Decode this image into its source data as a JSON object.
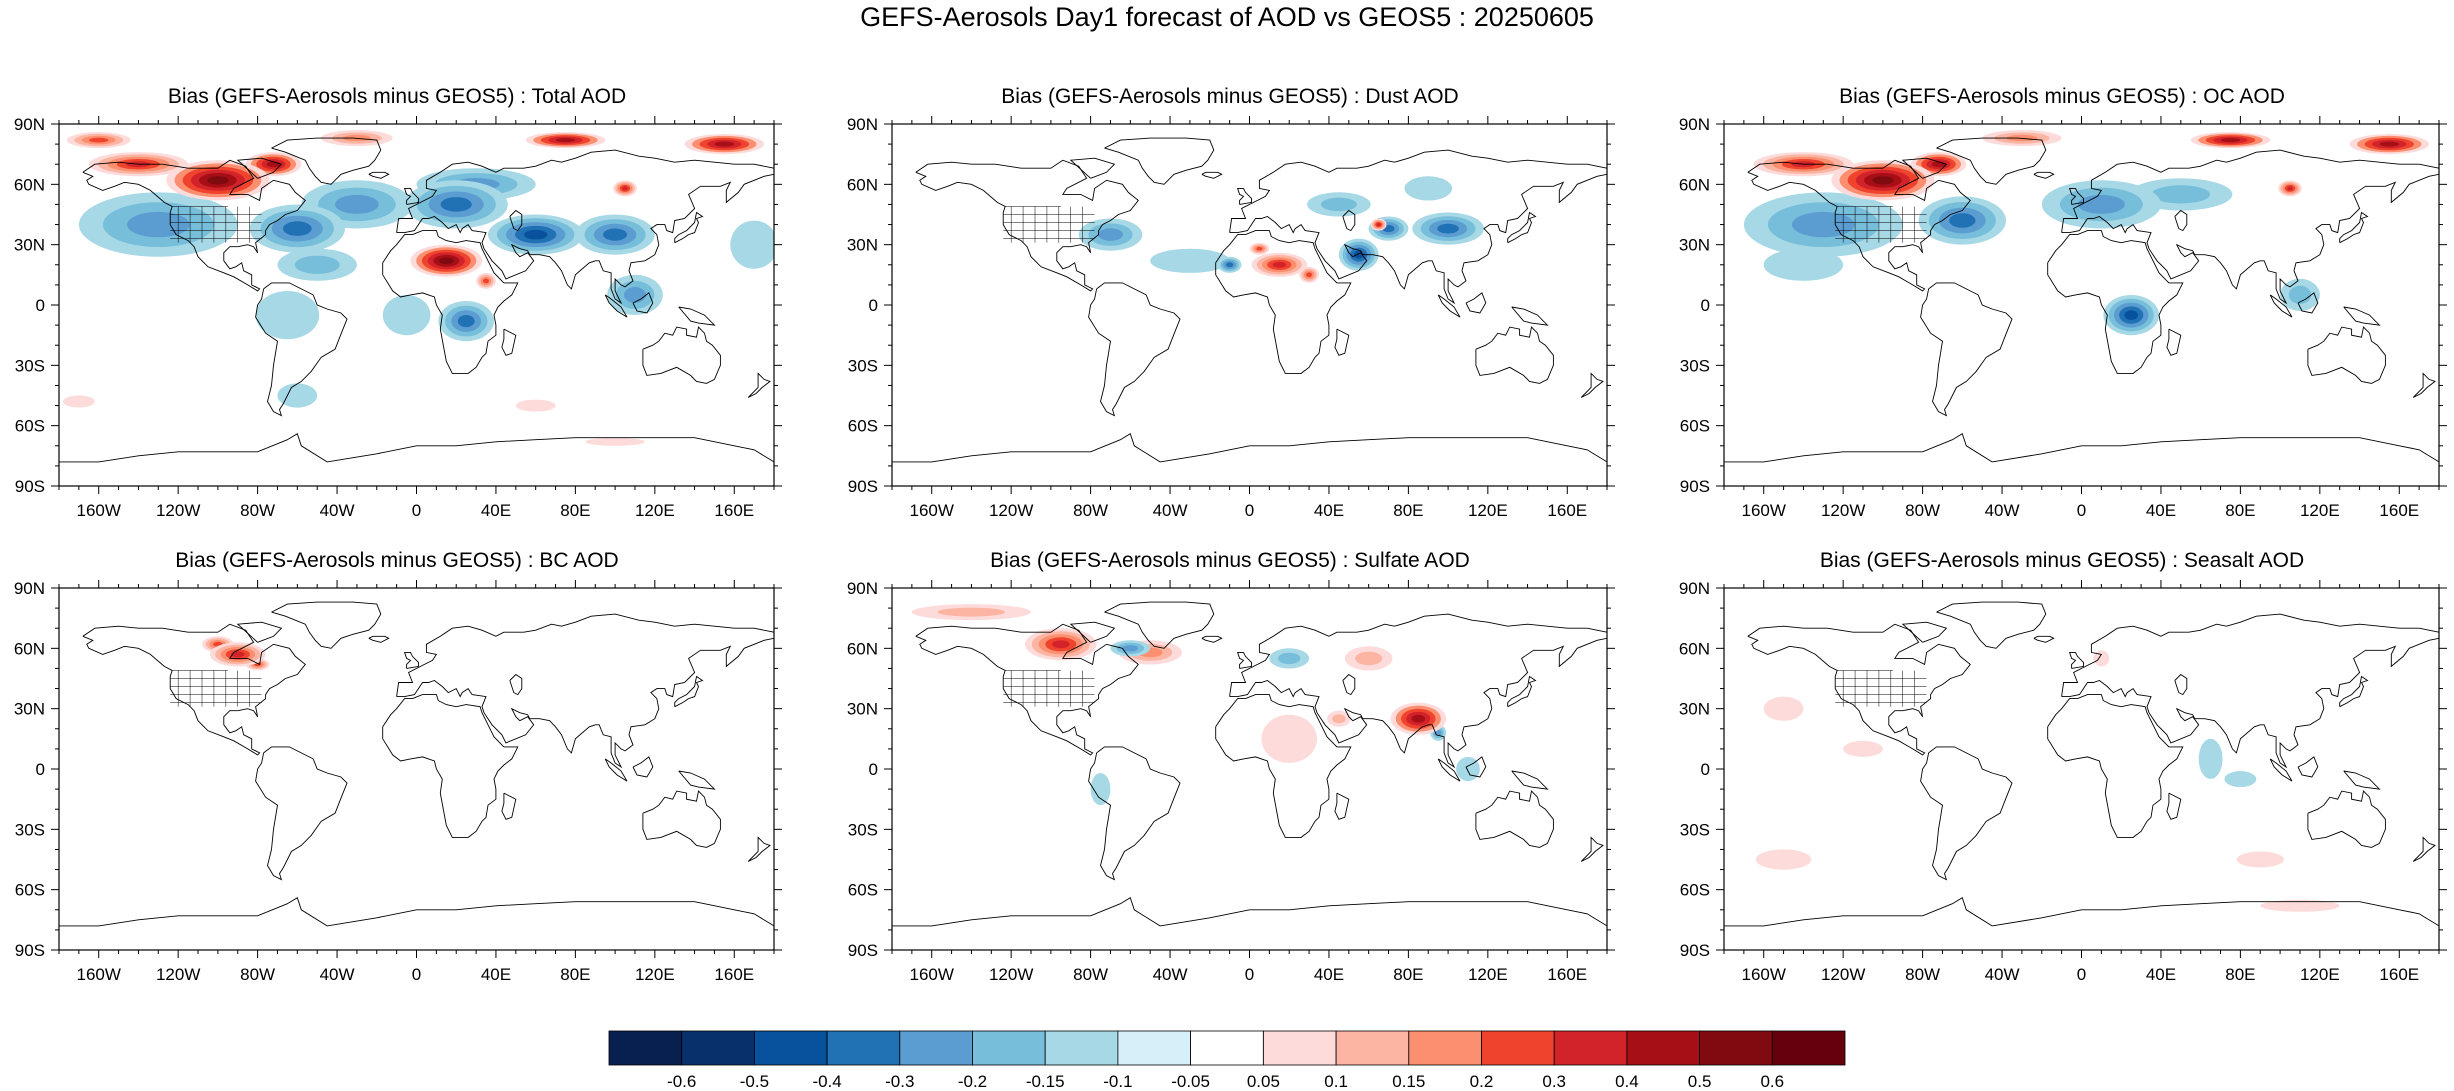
{
  "title": "GEFS-Aerosols Day1 forecast of AOD vs GEOS5 : 20250605",
  "map": {
    "lat_labels": [
      "90N",
      "60N",
      "30N",
      "0",
      "30S",
      "60S",
      "90S"
    ],
    "lat_values": [
      90,
      60,
      30,
      0,
      -30,
      -60,
      -90
    ],
    "lon_labels": [
      "160W",
      "120W",
      "80W",
      "40W",
      "0",
      "40E",
      "80E",
      "120E",
      "160E"
    ],
    "lon_values": [
      -160,
      -120,
      -80,
      -40,
      0,
      40,
      80,
      120,
      160
    ],
    "lon_range": [
      -180,
      180
    ],
    "lat_range": [
      -90,
      90
    ]
  },
  "panels": [
    {
      "title": "Bias (GEFS-Aerosols minus GEOS5) : Total AOD",
      "blobs": [
        {
          "lon": -100,
          "lat": 62,
          "rlon": 26,
          "rlat": 10,
          "v": 0.6
        },
        {
          "lon": -140,
          "lat": 70,
          "rlon": 25,
          "rlat": 6,
          "v": 0.4
        },
        {
          "lon": -72,
          "lat": 70,
          "rlon": 14,
          "rlat": 6,
          "v": 0.5
        },
        {
          "lon": -160,
          "lat": 82,
          "rlon": 16,
          "rlat": 4,
          "v": 0.3
        },
        {
          "lon": -30,
          "lat": 83,
          "rlon": 18,
          "rlat": 4,
          "v": 0.2
        },
        {
          "lon": 75,
          "lat": 82,
          "rlon": 20,
          "rlat": 4,
          "v": 0.5
        },
        {
          "lon": 155,
          "lat": 80,
          "rlon": 20,
          "rlat": 5,
          "v": 0.5
        },
        {
          "lon": 105,
          "lat": 58,
          "rlon": 6,
          "rlat": 4,
          "v": 0.4
        },
        {
          "lon": 15,
          "lat": 22,
          "rlon": 18,
          "rlat": 8,
          "v": 0.6
        },
        {
          "lon": 35,
          "lat": 12,
          "rlon": 5,
          "rlat": 4,
          "v": 0.3
        },
        {
          "lon": -130,
          "lat": 40,
          "rlon": 40,
          "rlat": 16,
          "v": -0.2
        },
        {
          "lon": -60,
          "lat": 38,
          "rlon": 24,
          "rlat": 12,
          "v": -0.3
        },
        {
          "lon": -30,
          "lat": 50,
          "rlon": 28,
          "rlat": 12,
          "v": -0.2
        },
        {
          "lon": 20,
          "lat": 50,
          "rlon": 26,
          "rlat": 12,
          "v": -0.3
        },
        {
          "lon": 60,
          "lat": 35,
          "rlon": 24,
          "rlat": 10,
          "v": -0.4
        },
        {
          "lon": 100,
          "lat": 35,
          "rlon": 20,
          "rlat": 10,
          "v": -0.3
        },
        {
          "lon": 30,
          "lat": 60,
          "rlon": 30,
          "rlat": 8,
          "v": -0.2
        },
        {
          "lon": -50,
          "lat": 20,
          "rlon": 20,
          "rlat": 8,
          "v": -0.15
        },
        {
          "lon": -65,
          "lat": -5,
          "rlon": 16,
          "rlat": 12,
          "v": -0.1
        },
        {
          "lon": 25,
          "lat": -8,
          "rlon": 14,
          "rlat": 10,
          "v": -0.3
        },
        {
          "lon": -5,
          "lat": -5,
          "rlon": 12,
          "rlat": 10,
          "v": -0.1
        },
        {
          "lon": 110,
          "lat": 5,
          "rlon": 14,
          "rlat": 10,
          "v": -0.2
        },
        {
          "lon": 170,
          "lat": 30,
          "rlon": 12,
          "rlat": 12,
          "v": -0.1
        },
        {
          "lon": -60,
          "lat": -45,
          "rlon": 10,
          "rlat": 6,
          "v": -0.1
        },
        {
          "lon": -170,
          "lat": -48,
          "rlon": 8,
          "rlat": 3,
          "v": 0.1
        },
        {
          "lon": 60,
          "lat": -50,
          "rlon": 10,
          "rlat": 3,
          "v": 0.1
        },
        {
          "lon": 100,
          "lat": -68,
          "rlon": 15,
          "rlat": 2,
          "v": 0.1
        }
      ]
    },
    {
      "title": "Bias (GEFS-Aerosols minus GEOS5) : Dust AOD",
      "blobs": [
        {
          "lon": 15,
          "lat": 20,
          "rlon": 14,
          "rlat": 6,
          "v": 0.4
        },
        {
          "lon": 5,
          "lat": 28,
          "rlon": 5,
          "rlat": 3,
          "v": 0.3
        },
        {
          "lon": 30,
          "lat": 15,
          "rlon": 5,
          "rlat": 4,
          "v": 0.3
        },
        {
          "lon": -10,
          "lat": 20,
          "rlon": 6,
          "rlat": 4,
          "v": -0.3
        },
        {
          "lon": 55,
          "lat": 25,
          "rlon": 10,
          "rlat": 8,
          "v": -0.4
        },
        {
          "lon": 70,
          "lat": 38,
          "rlon": 10,
          "rlat": 6,
          "v": -0.3
        },
        {
          "lon": 100,
          "lat": 38,
          "rlon": 18,
          "rlat": 8,
          "v": -0.3
        },
        {
          "lon": 45,
          "lat": 50,
          "rlon": 16,
          "rlat": 6,
          "v": -0.15
        },
        {
          "lon": -70,
          "lat": 35,
          "rlon": 16,
          "rlat": 8,
          "v": -0.2
        },
        {
          "lon": -30,
          "lat": 22,
          "rlon": 20,
          "rlat": 6,
          "v": -0.1
        },
        {
          "lon": 90,
          "lat": 58,
          "rlon": 12,
          "rlat": 6,
          "v": -0.1
        },
        {
          "lon": 65,
          "lat": 40,
          "rlon": 4,
          "rlat": 3,
          "v": 0.4
        }
      ]
    },
    {
      "title": "Bias (GEFS-Aerosols minus GEOS5) : OC AOD",
      "blobs": [
        {
          "lon": -100,
          "lat": 62,
          "rlon": 26,
          "rlat": 10,
          "v": 0.6
        },
        {
          "lon": -140,
          "lat": 70,
          "rlon": 25,
          "rlat": 6,
          "v": 0.4
        },
        {
          "lon": -72,
          "lat": 70,
          "rlon": 14,
          "rlat": 6,
          "v": 0.5
        },
        {
          "lon": -30,
          "lat": 83,
          "rlon": 20,
          "rlat": 4,
          "v": 0.2
        },
        {
          "lon": 75,
          "lat": 82,
          "rlon": 20,
          "rlat": 4,
          "v": 0.5
        },
        {
          "lon": 155,
          "lat": 80,
          "rlon": 20,
          "rlat": 5,
          "v": 0.5
        },
        {
          "lon": 105,
          "lat": 58,
          "rlon": 6,
          "rlat": 4,
          "v": 0.4
        },
        {
          "lon": -130,
          "lat": 40,
          "rlon": 40,
          "rlat": 16,
          "v": -0.2
        },
        {
          "lon": -60,
          "lat": 42,
          "rlon": 22,
          "rlat": 12,
          "v": -0.3
        },
        {
          "lon": 10,
          "lat": 50,
          "rlon": 30,
          "rlat": 12,
          "v": -0.2
        },
        {
          "lon": 50,
          "lat": 55,
          "rlon": 26,
          "rlat": 8,
          "v": -0.15
        },
        {
          "lon": 25,
          "lat": -5,
          "rlon": 14,
          "rlat": 10,
          "v": -0.4
        },
        {
          "lon": 110,
          "lat": 5,
          "rlon": 10,
          "rlat": 8,
          "v": -0.15
        },
        {
          "lon": -140,
          "lat": 20,
          "rlon": 20,
          "rlat": 8,
          "v": -0.1
        }
      ]
    },
    {
      "title": "Bias (GEFS-Aerosols minus GEOS5) : BC AOD",
      "blobs": [
        {
          "lon": -90,
          "lat": 57,
          "rlon": 14,
          "rlat": 6,
          "v": 0.4
        },
        {
          "lon": -100,
          "lat": 62,
          "rlon": 8,
          "rlat": 4,
          "v": 0.3
        },
        {
          "lon": -80,
          "lat": 52,
          "rlon": 6,
          "rlat": 3,
          "v": 0.3
        }
      ]
    },
    {
      "title": "Bias (GEFS-Aerosols minus GEOS5) : Sulfate AOD",
      "blobs": [
        {
          "lon": -95,
          "lat": 62,
          "rlon": 18,
          "rlat": 8,
          "v": 0.4
        },
        {
          "lon": -140,
          "lat": 78,
          "rlon": 30,
          "rlat": 4,
          "v": 0.15
        },
        {
          "lon": -50,
          "lat": 58,
          "rlon": 16,
          "rlat": 6,
          "v": 0.2
        },
        {
          "lon": 85,
          "lat": 25,
          "rlon": 14,
          "rlat": 8,
          "v": 0.5
        },
        {
          "lon": 60,
          "lat": 55,
          "rlon": 12,
          "rlat": 6,
          "v": 0.15
        },
        {
          "lon": 20,
          "lat": 15,
          "rlon": 14,
          "rlat": 12,
          "v": 0.1
        },
        {
          "lon": 45,
          "lat": 25,
          "rlon": 6,
          "rlat": 4,
          "v": 0.15
        },
        {
          "lon": -60,
          "lat": 60,
          "rlon": 10,
          "rlat": 4,
          "v": -0.2
        },
        {
          "lon": 20,
          "lat": 55,
          "rlon": 10,
          "rlat": 5,
          "v": -0.15
        },
        {
          "lon": 95,
          "lat": 18,
          "rlon": 4,
          "rlat": 4,
          "v": -0.2
        },
        {
          "lon": -75,
          "lat": -10,
          "rlon": 5,
          "rlat": 8,
          "v": -0.1
        },
        {
          "lon": 110,
          "lat": 0,
          "rlon": 6,
          "rlat": 6,
          "v": -0.1
        }
      ]
    },
    {
      "title": "Bias (GEFS-Aerosols minus GEOS5) : Seasalt AOD",
      "blobs": [
        {
          "lon": -150,
          "lat": 30,
          "rlon": 10,
          "rlat": 6,
          "v": 0.1
        },
        {
          "lon": -110,
          "lat": 10,
          "rlon": 10,
          "rlat": 4,
          "v": 0.1
        },
        {
          "lon": -150,
          "lat": -45,
          "rlon": 14,
          "rlat": 5,
          "v": 0.1
        },
        {
          "lon": 90,
          "lat": -45,
          "rlon": 12,
          "rlat": 4,
          "v": 0.1
        },
        {
          "lon": 110,
          "lat": -68,
          "rlon": 20,
          "rlat": 3,
          "v": 0.1
        },
        {
          "lon": 65,
          "lat": 5,
          "rlon": 6,
          "rlat": 10,
          "v": -0.1
        },
        {
          "lon": 80,
          "lat": -5,
          "rlon": 8,
          "rlat": 4,
          "v": -0.1
        },
        {
          "lon": 10,
          "lat": 55,
          "rlon": 4,
          "rlat": 4,
          "v": 0.1
        }
      ]
    }
  ],
  "colorbar": {
    "labels": [
      "-0.6",
      "-0.5",
      "-0.4",
      "-0.3",
      "-0.2",
      "-0.15",
      "-0.1",
      "-0.05",
      "0.05",
      "0.1",
      "0.15",
      "0.2",
      "0.3",
      "0.4",
      "0.5",
      "0.6"
    ],
    "levels": [
      -0.6,
      -0.5,
      -0.4,
      -0.3,
      -0.2,
      -0.15,
      -0.1,
      -0.05,
      0.05,
      0.1,
      0.15,
      0.2,
      0.3,
      0.4,
      0.5,
      0.6
    ],
    "colors": [
      "#08204f",
      "#08306b",
      "#08519c",
      "#2171b5",
      "#5c9dd1",
      "#77bedb",
      "#a6d8e6",
      "#d6f0fa",
      "#ffffff",
      "#fddbdb",
      "#fcb5a3",
      "#fb8f6f",
      "#f0432e",
      "#d2232a",
      "#a50f15",
      "#7f0a10",
      "#67000d"
    ]
  }
}
